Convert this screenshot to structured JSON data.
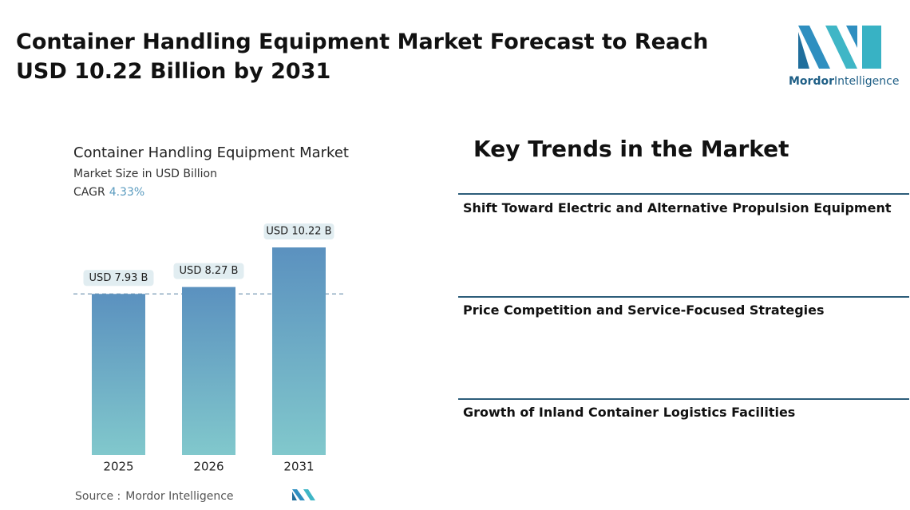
{
  "header": {
    "title": "Container Handling Equipment Market Forecast to Reach USD 10.22 Billion by 2031"
  },
  "logo": {
    "brand": "Mordor",
    "suffix": "Intelligence"
  },
  "chart_data": {
    "type": "bar",
    "title": "Container Handling Equipment Market",
    "subtitle": "Market Size in USD Billion",
    "cagr_label": "CAGR",
    "cagr": "4.33%",
    "categories": [
      "2025",
      "2026",
      "2031"
    ],
    "values": [
      7.93,
      8.27,
      10.22
    ],
    "value_labels": [
      "USD 7.93 B",
      "USD 8.27 B",
      "USD 10.22 B"
    ],
    "color_top": "#5b91bf",
    "color_bottom": "#81c8cc",
    "source_label": "Source :",
    "source": "Mordor Intelligence"
  },
  "trends": {
    "title": "Key Trends in the Market",
    "items": [
      "Shift Toward Electric and Alternative Propulsion Equipment",
      "Price Competition and Service-Focused Strategies",
      "Growth of Inland Container Logistics Facilities"
    ]
  }
}
